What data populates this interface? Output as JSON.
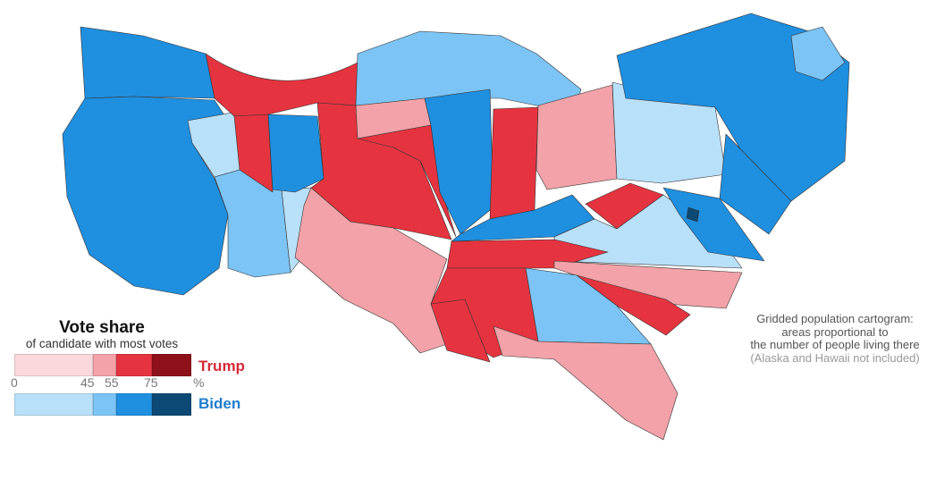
{
  "legend": {
    "title": "Vote share",
    "subtitle": "of candidate with most votes",
    "ticks": [
      "0",
      "45",
      "55",
      "75",
      "%"
    ],
    "trump": {
      "label": "Trump",
      "label_color": "#d52b38",
      "colors": [
        "#f9d9dc",
        "#f2a2a8",
        "#e5343f",
        "#8e1119"
      ]
    },
    "biden": {
      "label": "Biden",
      "label_color": "#1f7ccc",
      "colors": [
        "#b9e0f9",
        "#7cc4f5",
        "#1f8fe0",
        "#0c4a75"
      ]
    }
  },
  "note": {
    "line1": "Gridded population cartogram:",
    "line2": "areas proportional to",
    "line3": "the number of people living there",
    "line4": "(Alaska and Hawaii not included)"
  }
}
